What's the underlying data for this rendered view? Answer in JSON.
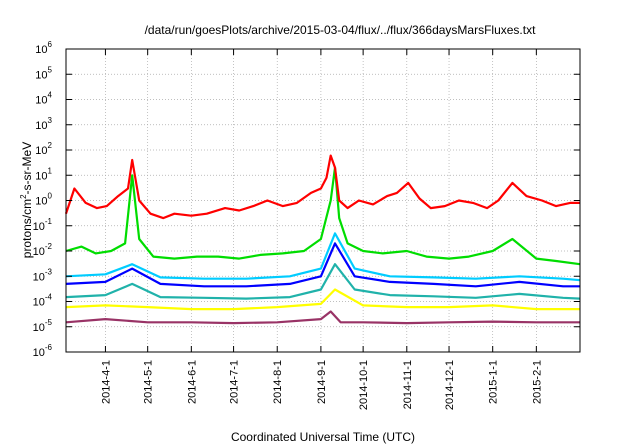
{
  "chart_data": {
    "type": "line",
    "title": "/data/run/goesPlots/archive/2015-03-04/flux/../flux/366daysMarsFluxes.txt",
    "xlabel": "Coordinated Universal Time (UTC)",
    "ylabel_parts": [
      "protons/cm",
      "2",
      "-s-sr-MeV"
    ],
    "yscale": "log",
    "ylim": [
      1e-06,
      1000000.0
    ],
    "y_ticks": [
      {
        "base": "10",
        "exp": "-6"
      },
      {
        "base": "10",
        "exp": "-5"
      },
      {
        "base": "10",
        "exp": "-4"
      },
      {
        "base": "10",
        "exp": "-3"
      },
      {
        "base": "10",
        "exp": "-2"
      },
      {
        "base": "10",
        "exp": "-1"
      },
      {
        "base": "10",
        "exp": "0"
      },
      {
        "base": "10",
        "exp": "1"
      },
      {
        "base": "10",
        "exp": "2"
      },
      {
        "base": "10",
        "exp": "3"
      },
      {
        "base": "10",
        "exp": "4"
      },
      {
        "base": "10",
        "exp": "5"
      },
      {
        "base": "10",
        "exp": "6"
      }
    ],
    "xlim": [
      "2014-03-04",
      "2015-03-04"
    ],
    "x_ticks": [
      "2014-4-1",
      "2014-5-1",
      "2014-6-1",
      "2014-7-1",
      "2014-8-1",
      "2014-9-1",
      "2014-10-1",
      "2014-11-1",
      "2014-12-1",
      "2015-1-1",
      "2015-2-1"
    ],
    "x_tick_dates": [
      "2014-04-01",
      "2014-05-01",
      "2014-06-01",
      "2014-07-01",
      "2014-08-01",
      "2014-09-01",
      "2014-10-01",
      "2014-11-01",
      "2014-12-01",
      "2015-01-01",
      "2015-02-01"
    ],
    "grid": true,
    "legend": "none",
    "series": [
      {
        "color": "#ff0000",
        "x": [
          "2014-03-04",
          "2014-03-10",
          "2014-03-18",
          "2014-03-26",
          "2014-04-02",
          "2014-04-10",
          "2014-04-17",
          "2014-04-20",
          "2014-04-25",
          "2014-05-03",
          "2014-05-12",
          "2014-05-20",
          "2014-06-01",
          "2014-06-12",
          "2014-06-25",
          "2014-07-05",
          "2014-07-15",
          "2014-07-25",
          "2014-08-05",
          "2014-08-15",
          "2014-08-25",
          "2014-09-01",
          "2014-09-05",
          "2014-09-08",
          "2014-09-11",
          "2014-09-14",
          "2014-09-20",
          "2014-09-28",
          "2014-10-08",
          "2014-10-18",
          "2014-10-25",
          "2014-11-02",
          "2014-11-10",
          "2014-11-18",
          "2014-11-28",
          "2014-12-08",
          "2014-12-18",
          "2014-12-28",
          "2015-01-05",
          "2015-01-15",
          "2015-01-25",
          "2015-02-05",
          "2015-02-15",
          "2015-02-25",
          "2015-03-04"
        ],
        "values": [
          0.3,
          3,
          0.8,
          0.5,
          0.6,
          1.5,
          3,
          40,
          1,
          0.3,
          0.2,
          0.3,
          0.25,
          0.3,
          0.5,
          0.4,
          0.6,
          1,
          0.6,
          0.8,
          2,
          3,
          8,
          60,
          20,
          1,
          0.5,
          1,
          0.7,
          1.5,
          2,
          5,
          1.2,
          0.5,
          0.6,
          1,
          0.8,
          0.5,
          1,
          5,
          1.5,
          1,
          0.6,
          0.8,
          0.8
        ]
      },
      {
        "color": "#00dd00",
        "x": [
          "2014-03-04",
          "2014-03-15",
          "2014-03-25",
          "2014-04-05",
          "2014-04-15",
          "2014-04-20",
          "2014-04-25",
          "2014-05-05",
          "2014-05-20",
          "2014-06-05",
          "2014-06-20",
          "2014-07-05",
          "2014-07-20",
          "2014-08-05",
          "2014-08-20",
          "2014-09-01",
          "2014-09-08",
          "2014-09-11",
          "2014-09-14",
          "2014-09-20",
          "2014-10-01",
          "2014-10-15",
          "2014-11-01",
          "2014-11-15",
          "2014-12-01",
          "2014-12-15",
          "2015-01-01",
          "2015-01-15",
          "2015-02-01",
          "2015-02-15",
          "2015-03-04"
        ],
        "values": [
          0.01,
          0.015,
          0.008,
          0.01,
          0.02,
          10,
          0.03,
          0.006,
          0.005,
          0.006,
          0.006,
          0.005,
          0.007,
          0.008,
          0.01,
          0.03,
          1,
          20,
          0.2,
          0.02,
          0.01,
          0.008,
          0.01,
          0.006,
          0.005,
          0.006,
          0.01,
          0.03,
          0.005,
          0.004,
          0.003
        ]
      },
      {
        "color": "#00ccff",
        "x": [
          "2014-03-04",
          "2014-04-01",
          "2014-04-20",
          "2014-05-10",
          "2014-06-10",
          "2014-07-10",
          "2014-08-10",
          "2014-09-01",
          "2014-09-11",
          "2014-09-25",
          "2014-10-20",
          "2014-11-20",
          "2014-12-20",
          "2015-01-20",
          "2015-02-20",
          "2015-03-04"
        ],
        "values": [
          0.001,
          0.0012,
          0.003,
          0.0009,
          0.0008,
          0.0008,
          0.001,
          0.002,
          0.05,
          0.002,
          0.001,
          0.0009,
          0.0008,
          0.001,
          0.0008,
          0.0007
        ]
      },
      {
        "color": "#0000ff",
        "x": [
          "2014-03-04",
          "2014-04-01",
          "2014-04-20",
          "2014-05-10",
          "2014-06-10",
          "2014-07-10",
          "2014-08-10",
          "2014-09-01",
          "2014-09-11",
          "2014-09-25",
          "2014-10-20",
          "2014-11-20",
          "2014-12-20",
          "2015-01-20",
          "2015-02-20",
          "2015-03-04"
        ],
        "values": [
          0.0005,
          0.0006,
          0.002,
          0.0005,
          0.0004,
          0.0004,
          0.0005,
          0.001,
          0.02,
          0.001,
          0.0006,
          0.0005,
          0.0004,
          0.0006,
          0.0004,
          0.0004
        ]
      },
      {
        "color": "#20b2aa",
        "x": [
          "2014-03-04",
          "2014-04-01",
          "2014-04-20",
          "2014-05-10",
          "2014-06-10",
          "2014-07-10",
          "2014-08-10",
          "2014-09-01",
          "2014-09-11",
          "2014-09-25",
          "2014-10-20",
          "2014-11-20",
          "2014-12-20",
          "2015-01-20",
          "2015-02-20",
          "2015-03-04"
        ],
        "values": [
          0.00015,
          0.00018,
          0.0005,
          0.00015,
          0.00014,
          0.00013,
          0.00015,
          0.0003,
          0.003,
          0.0003,
          0.00018,
          0.00016,
          0.00014,
          0.0002,
          0.00014,
          0.00013
        ]
      },
      {
        "color": "#ffff00",
        "x": [
          "2014-03-04",
          "2014-04-01",
          "2014-05-01",
          "2014-06-01",
          "2014-07-01",
          "2014-08-01",
          "2014-09-01",
          "2014-09-11",
          "2014-10-01",
          "2014-11-01",
          "2014-12-01",
          "2015-01-01",
          "2015-02-01",
          "2015-03-04"
        ],
        "values": [
          6e-05,
          7e-05,
          6e-05,
          5e-05,
          5e-05,
          6e-05,
          8e-05,
          0.0003,
          7e-05,
          6e-05,
          6e-05,
          7e-05,
          5e-05,
          5e-05
        ]
      },
      {
        "color": "#993366",
        "x": [
          "2014-03-04",
          "2014-04-01",
          "2014-05-01",
          "2014-06-01",
          "2014-07-01",
          "2014-08-01",
          "2014-09-01",
          "2014-09-08",
          "2014-09-15",
          "2014-10-01",
          "2014-11-01",
          "2014-12-01",
          "2015-01-01",
          "2015-02-01",
          "2015-03-04"
        ],
        "values": [
          1.5e-05,
          2e-05,
          1.5e-05,
          1.5e-05,
          1.4e-05,
          1.5e-05,
          2e-05,
          4e-05,
          1.5e-05,
          1.5e-05,
          1.4e-05,
          1.5e-05,
          1.6e-05,
          1.5e-05,
          1.5e-05
        ]
      }
    ]
  }
}
